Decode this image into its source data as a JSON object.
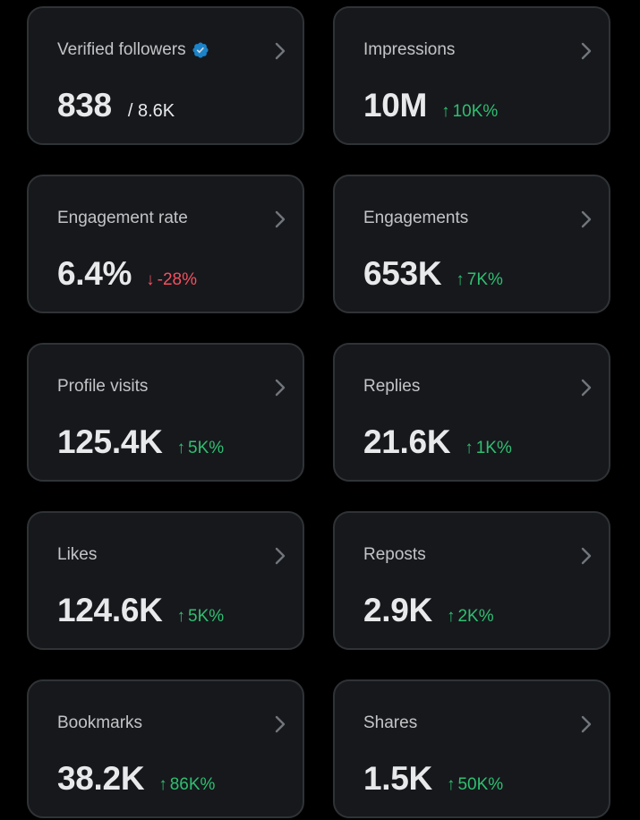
{
  "colors": {
    "background": "#000000",
    "card_background": "#16181c",
    "card_border": "#2f3336",
    "text_primary": "#e7e9ea",
    "positive": "#2fbf71",
    "negative": "#f4505f",
    "verified_badge": "#1d9bf0"
  },
  "metrics": [
    {
      "label": "Verified followers",
      "value": "838",
      "total": "/ 8.6K",
      "icon": "verified-badge-icon"
    },
    {
      "label": "Impressions",
      "value": "10M",
      "change": "10K%",
      "direction": "up",
      "arrow": "↑"
    },
    {
      "label": "Engagement rate",
      "value": "6.4%",
      "change": "-28%",
      "direction": "down",
      "arrow": "↓"
    },
    {
      "label": "Engagements",
      "value": "653K",
      "change": "7K%",
      "direction": "up",
      "arrow": "↑"
    },
    {
      "label": "Profile visits",
      "value": "125.4K",
      "change": "5K%",
      "direction": "up",
      "arrow": "↑"
    },
    {
      "label": "Replies",
      "value": "21.6K",
      "change": "1K%",
      "direction": "up",
      "arrow": "↑"
    },
    {
      "label": "Likes",
      "value": "124.6K",
      "change": "5K%",
      "direction": "up",
      "arrow": "↑"
    },
    {
      "label": "Reposts",
      "value": "2.9K",
      "change": "2K%",
      "direction": "up",
      "arrow": "↑"
    },
    {
      "label": "Bookmarks",
      "value": "38.2K",
      "change": "86K%",
      "direction": "up",
      "arrow": "↑"
    },
    {
      "label": "Shares",
      "value": "1.5K",
      "change": "50K%",
      "direction": "up",
      "arrow": "↑"
    }
  ]
}
